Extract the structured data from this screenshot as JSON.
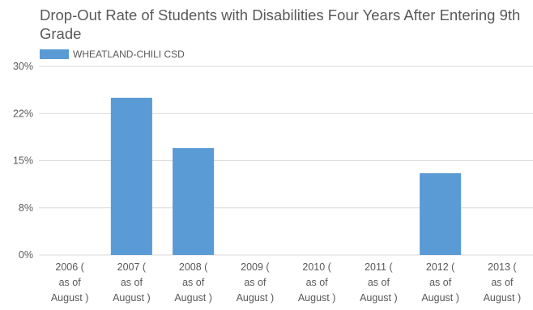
{
  "chart_data": {
    "type": "bar",
    "title": "Drop-Out Rate of Students with Disabilities Four Years After Entering 9th Grade",
    "xlabel": "",
    "ylabel": "",
    "ylim": [
      0,
      30
    ],
    "y_ticks": [
      {
        "value": 0,
        "label": "0%"
      },
      {
        "value": 7.5,
        "label": "8%"
      },
      {
        "value": 15,
        "label": "15%"
      },
      {
        "value": 22.5,
        "label": "22%"
      },
      {
        "value": 30,
        "label": "30%"
      }
    ],
    "categories": [
      [
        "2006 (",
        "as of",
        "August )"
      ],
      [
        "2007 (",
        "as of",
        "August )"
      ],
      [
        "2008 (",
        "as of",
        "August )"
      ],
      [
        "2009 (",
        "as of",
        "August )"
      ],
      [
        "2010 (",
        "as of",
        "August )"
      ],
      [
        "2011 (",
        "as of",
        "August )"
      ],
      [
        "2012 (",
        "as of",
        "August )"
      ],
      [
        "2013 (",
        "as of",
        "August )"
      ]
    ],
    "series": [
      {
        "name": "WHEATLAND-CHILI CSD",
        "color": "#5b9bd5",
        "values": [
          0,
          25,
          17,
          0,
          0,
          0,
          13,
          0
        ]
      }
    ],
    "grid": true,
    "legend_position": "top-left"
  },
  "colors": {
    "bar": "#5b9bd5",
    "grid": "#d9d9d9",
    "text": "#595959"
  }
}
